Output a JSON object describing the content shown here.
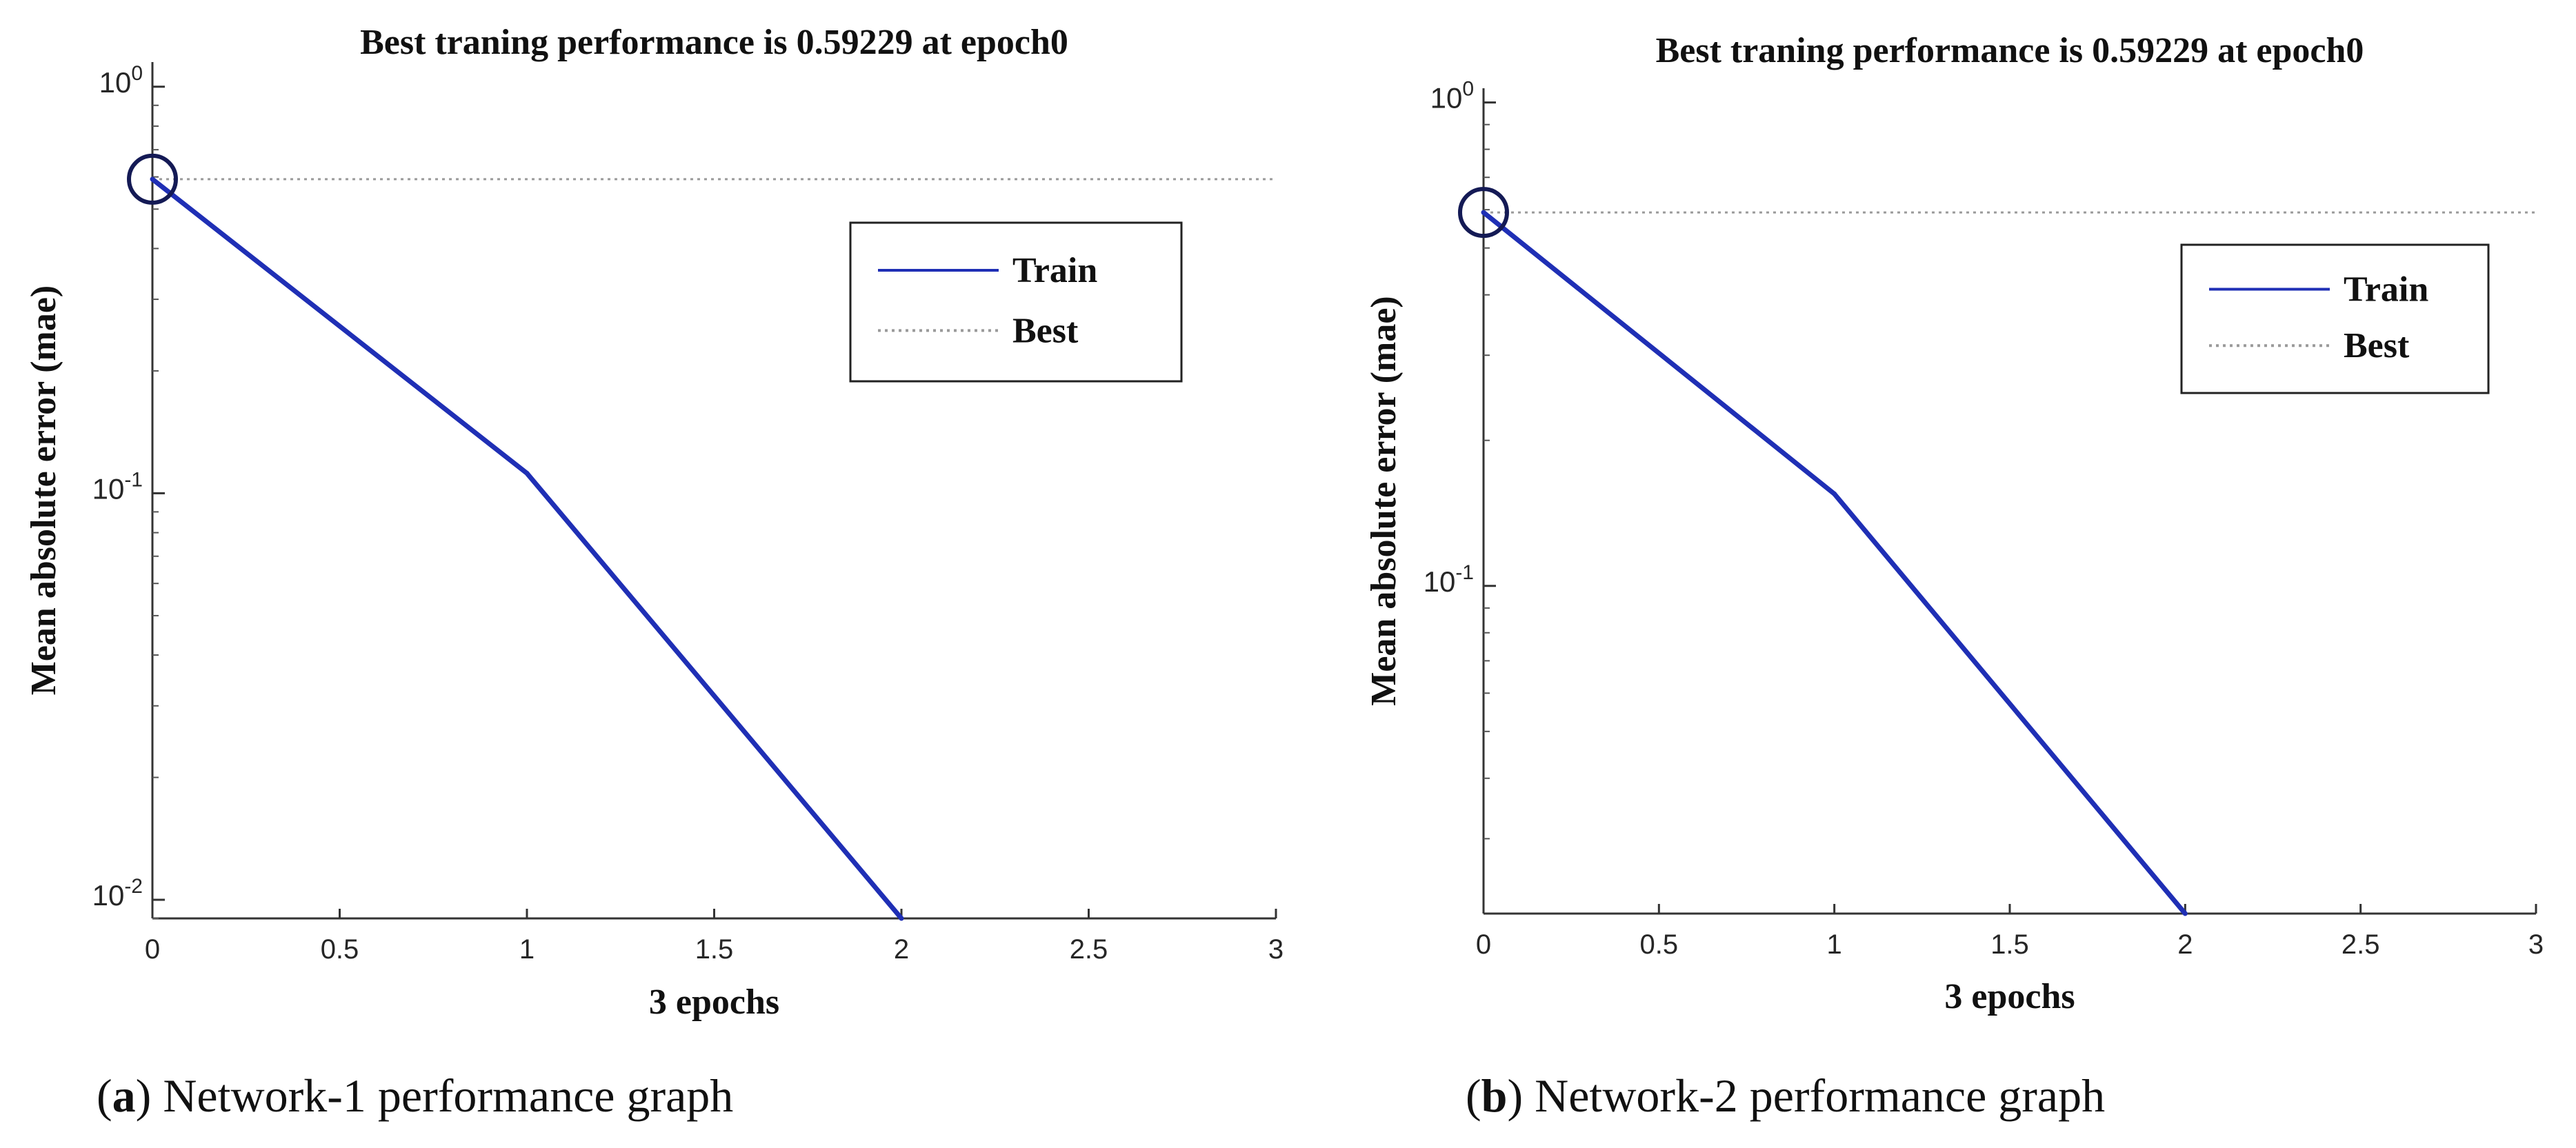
{
  "chart_data": [
    {
      "panel": "a",
      "type": "line",
      "title": "Best traning performance is 0.59229 at epoch0",
      "xlabel": "3 epochs",
      "ylabel": "Mean absolute error (mae)",
      "xlim": [
        0,
        3
      ],
      "ylim": [
        0.009,
        1.15
      ],
      "yscale": "log",
      "x_ticks": [
        "0",
        "0.5",
        "1",
        "1.5",
        "2",
        "2.5",
        "3"
      ],
      "y_ticks": [
        {
          "base": "10",
          "exp": "0",
          "value": 1
        },
        {
          "base": "10",
          "exp": "-1",
          "value": 0.1
        },
        {
          "base": "10",
          "exp": "-2",
          "value": 0.01
        }
      ],
      "series": [
        {
          "name": "Train",
          "color": "#1f2fb5",
          "style": "solid",
          "x": [
            0,
            1,
            2
          ],
          "y": [
            0.59229,
            0.112,
            0.009
          ]
        },
        {
          "name": "Best",
          "color": "#9a9a9a",
          "style": "dotted",
          "y_const": 0.59229
        }
      ],
      "marker": {
        "x": 0,
        "y": 0.59229,
        "shape": "circle"
      },
      "legend": {
        "position": "top-right",
        "entries": [
          "Train",
          "Best"
        ]
      },
      "caption": {
        "label": "a",
        "text": " Network-1 performance graph"
      }
    },
    {
      "panel": "b",
      "type": "line",
      "title": "Best traning performance is 0.59229 at epoch0",
      "xlabel": "3 epochs",
      "ylabel": "Mean absolute error (mae)",
      "xlim": [
        0,
        3
      ],
      "ylim": [
        0.021,
        1.07
      ],
      "yscale": "log",
      "x_ticks": [
        "0",
        "0.5",
        "1",
        "1.5",
        "2",
        "2.5",
        "3"
      ],
      "y_ticks": [
        {
          "base": "10",
          "exp": "0",
          "value": 1
        },
        {
          "base": "10",
          "exp": "-1",
          "value": 0.1
        }
      ],
      "series": [
        {
          "name": "Train",
          "color": "#1f2fb5",
          "style": "solid",
          "x": [
            0,
            1,
            2
          ],
          "y": [
            0.59229,
            0.155,
            0.021
          ]
        },
        {
          "name": "Best",
          "color": "#9a9a9a",
          "style": "dotted",
          "y_const": 0.59229
        }
      ],
      "marker": {
        "x": 0,
        "y": 0.59229,
        "shape": "circle"
      },
      "legend": {
        "position": "top-right",
        "entries": [
          "Train",
          "Best"
        ]
      },
      "caption": {
        "label": "b",
        "text": " Network-2 performance graph"
      }
    }
  ]
}
